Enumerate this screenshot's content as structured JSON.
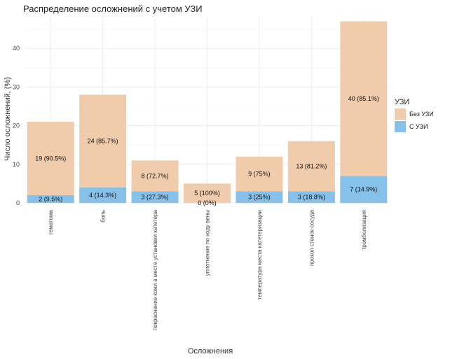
{
  "chart_data": {
    "type": "bar",
    "stacked": true,
    "title": "Распределение осложнений с учетом УЗИ",
    "xlabel": "Осложнения",
    "ylabel": "Число осложнений, (%)",
    "ylim": [
      0,
      48
    ],
    "yticks": [
      0,
      10,
      20,
      30,
      40
    ],
    "grid": true,
    "legend": {
      "title": "УЗИ",
      "position": "right"
    },
    "categories": [
      "гематома",
      "боль",
      "покраснение кожи в месте установки катетера",
      "уплотнение по ходу вены",
      "температура места катетеризации",
      "прокол стенок сосуда",
      "тромболизация"
    ],
    "series": [
      {
        "name": "С УЗИ",
        "color": "#85c1e9",
        "values": [
          2,
          4,
          3,
          0,
          3,
          3,
          7
        ],
        "labels": [
          "2 (9.5%)",
          "4 (14.3%)",
          "3 (27.3%)",
          "0 (0%)",
          "3 (25%)",
          "3 (18.8%)",
          "7 (14.9%)"
        ]
      },
      {
        "name": "Без УЗИ",
        "color": "#f0cbac",
        "values": [
          19,
          24,
          8,
          5,
          9,
          13,
          40
        ],
        "labels": [
          "19 (90.5%)",
          "24 (85.7%)",
          "8 (72.7%)",
          "5 (100%)",
          "9 (75%)",
          "13 (81.2%)",
          "40 (85.1%)"
        ]
      }
    ],
    "legend_order": [
      "Без УЗИ",
      "С УЗИ"
    ]
  }
}
